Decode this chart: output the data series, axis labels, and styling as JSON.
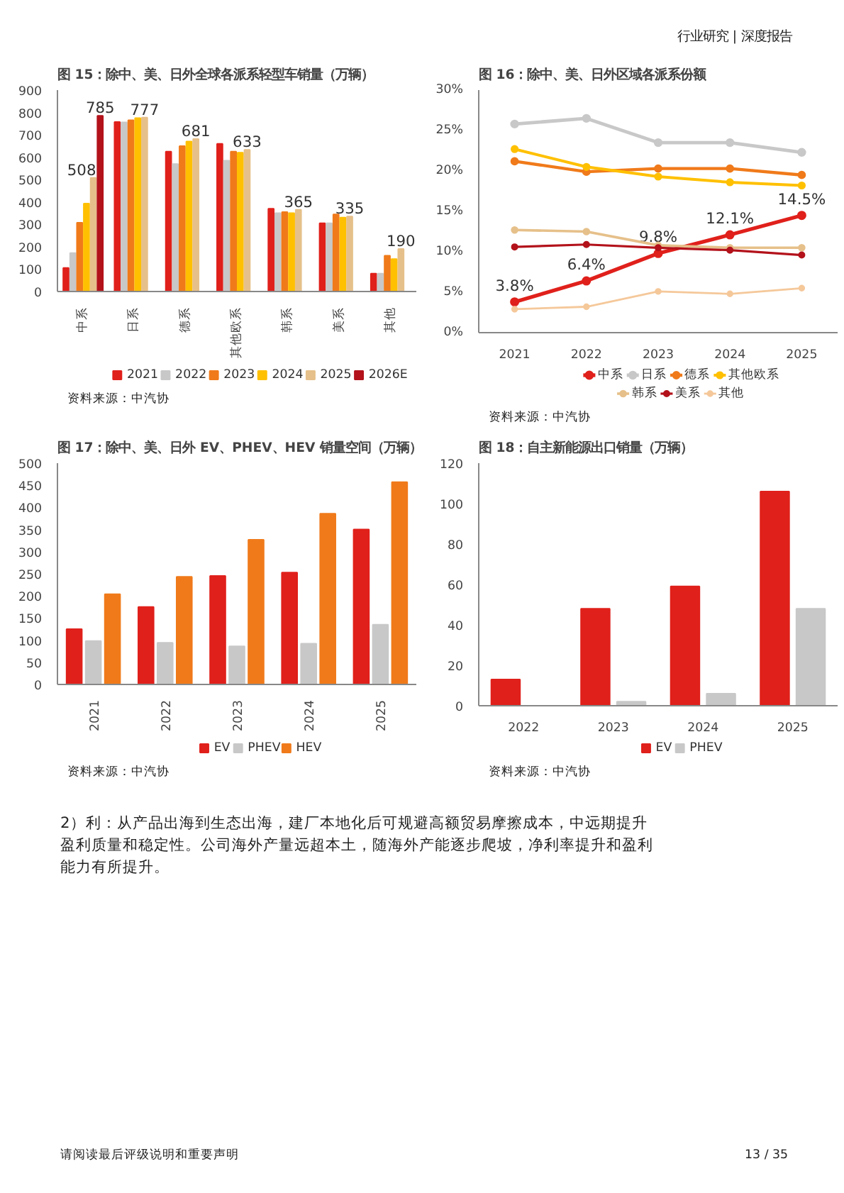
{
  "chart_data": [
    {
      "type": "other",
      "annotations": [
        "行业研究 | 深度报告"
      ]
    },
    {
      "type": "bar",
      "title": "图 15：除中、美、日外全球各派系轻型车销量（万辆）",
      "categories": [
        "中系",
        "日系",
        "德系",
        "其他欧系",
        "韩系",
        "美系",
        "其他"
      ],
      "ylim": [
        0,
        900
      ],
      "yticks": [
        0,
        100,
        200,
        300,
        400,
        500,
        600,
        700,
        800,
        900
      ],
      "legend": "bottom",
      "series": [
        {
          "name": "2021",
          "color": "#e0201b",
          "values": [
            105,
            757,
            625,
            660,
            370,
            305,
            80
          ]
        },
        {
          "name": "2022",
          "color": "#c8c8c8",
          "values": [
            172,
            756,
            570,
            585,
            350,
            305,
            80
          ]
        },
        {
          "name": "2023",
          "color": "#f07a1a",
          "values": [
            307,
            765,
            650,
            625,
            355,
            345,
            160
          ]
        },
        {
          "name": "2024",
          "color": "#ffc000",
          "values": [
            393,
            775,
            670,
            620,
            350,
            330,
            145
          ]
        },
        {
          "name": "2025",
          "color": "#e6c08a",
          "values": [
            508,
            777,
            681,
            633,
            365,
            335,
            190
          ],
          "value_labels": [
            "508",
            "777",
            "681",
            "633",
            "365",
            "335",
            "190"
          ]
        },
        {
          "name": "2026E",
          "color": "#b3121b",
          "values": [
            785,
            null,
            null,
            null,
            null,
            null,
            null
          ],
          "value_labels": [
            "785",
            null,
            null,
            null,
            null,
            null,
            null
          ]
        }
      ],
      "annotations": [
        "资料来源：中汽协"
      ]
    },
    {
      "type": "line",
      "title": "图 16：除中、美、日外区域各派系份额",
      "categories": [
        "2021",
        "2022",
        "2023",
        "2024",
        "2025"
      ],
      "ylim": [
        0,
        30
      ],
      "yticks": [
        {
          "value": 0,
          "label": "0%"
        },
        {
          "value": 5,
          "label": "5%"
        },
        {
          "value": 10,
          "label": "10%"
        },
        {
          "value": 15,
          "label": "15%"
        },
        {
          "value": 20,
          "label": "20%"
        },
        {
          "value": 25,
          "label": "25%"
        },
        {
          "value": 30,
          "label": "30%"
        }
      ],
      "legend": "bottom",
      "marker": "circle",
      "series": [
        {
          "name": "中系",
          "color": "#e0201b",
          "values": [
            3.8,
            6.4,
            9.8,
            12.1,
            14.5
          ],
          "value_labels": [
            "3.8%",
            "6.4%",
            "9.8%",
            "12.1%",
            "14.5%"
          ]
        },
        {
          "name": "日系",
          "color": "#c8c8c8",
          "values": [
            25.8,
            26.5,
            23.5,
            23.5,
            22.3
          ]
        },
        {
          "name": "德系",
          "color": "#f07a1a",
          "values": [
            21.2,
            19.9,
            20.3,
            20.3,
            19.5
          ]
        },
        {
          "name": "其他欧系",
          "color": "#ffc000",
          "values": [
            22.7,
            20.5,
            19.3,
            18.6,
            18.2
          ]
        },
        {
          "name": "韩系",
          "color": "#e6c08a",
          "values": [
            12.7,
            12.5,
            10.8,
            10.5,
            10.5
          ]
        },
        {
          "name": "美系",
          "color": "#b3121b",
          "values": [
            10.6,
            10.9,
            10.5,
            10.2,
            9.6
          ]
        },
        {
          "name": "其他",
          "color": "#f5c89a",
          "values": [
            2.9,
            3.2,
            5.1,
            4.8,
            5.5
          ]
        }
      ],
      "annotations": [
        "资料来源：中汽协"
      ]
    },
    {
      "type": "bar",
      "title": "图 17：除中、美、日外 EV、PHEV、HEV 销量空间（万辆）",
      "categories": [
        "2021",
        "2022",
        "2023",
        "2024",
        "2025"
      ],
      "ylim": [
        0,
        500
      ],
      "yticks": [
        0,
        50,
        100,
        150,
        200,
        250,
        300,
        350,
        400,
        450,
        500
      ],
      "legend": "bottom",
      "series": [
        {
          "name": "EV",
          "color": "#e0201b",
          "values": [
            125,
            175,
            245,
            253,
            350
          ]
        },
        {
          "name": "PHEV",
          "color": "#c8c8c8",
          "values": [
            98,
            94,
            86,
            92,
            135
          ]
        },
        {
          "name": "HEV",
          "color": "#f07a1a",
          "values": [
            204,
            243,
            327,
            386,
            457
          ]
        }
      ],
      "annotations": [
        "资料来源：中汽协"
      ]
    },
    {
      "type": "bar",
      "title": "图 18：自主新能源出口销量（万辆）",
      "categories": [
        "2022",
        "2023",
        "2024",
        "2025"
      ],
      "ylim": [
        0,
        120
      ],
      "yticks": [
        0,
        20,
        40,
        60,
        80,
        100,
        120
      ],
      "legend": "bottom",
      "series": [
        {
          "name": "EV",
          "color": "#e0201b",
          "values": [
            13,
            48,
            59,
            106
          ]
        },
        {
          "name": "PHEV",
          "color": "#c8c8c8",
          "values": [
            0,
            2,
            6,
            48
          ]
        }
      ],
      "annotations": [
        "资料来源：中汽协"
      ]
    },
    {
      "type": "other",
      "annotations": [
        "2）利：从产品出海到生态出海，建厂本地化后可规避高额贸易摩擦成本，中远期提升盈利质量和稳定性。公司海外产量远超本土，随海外产能逐步爬坡，净利率提升和盈利能力有所提升。",
        "请阅读最后评级说明和重要声明",
        "13 / 35"
      ]
    }
  ]
}
